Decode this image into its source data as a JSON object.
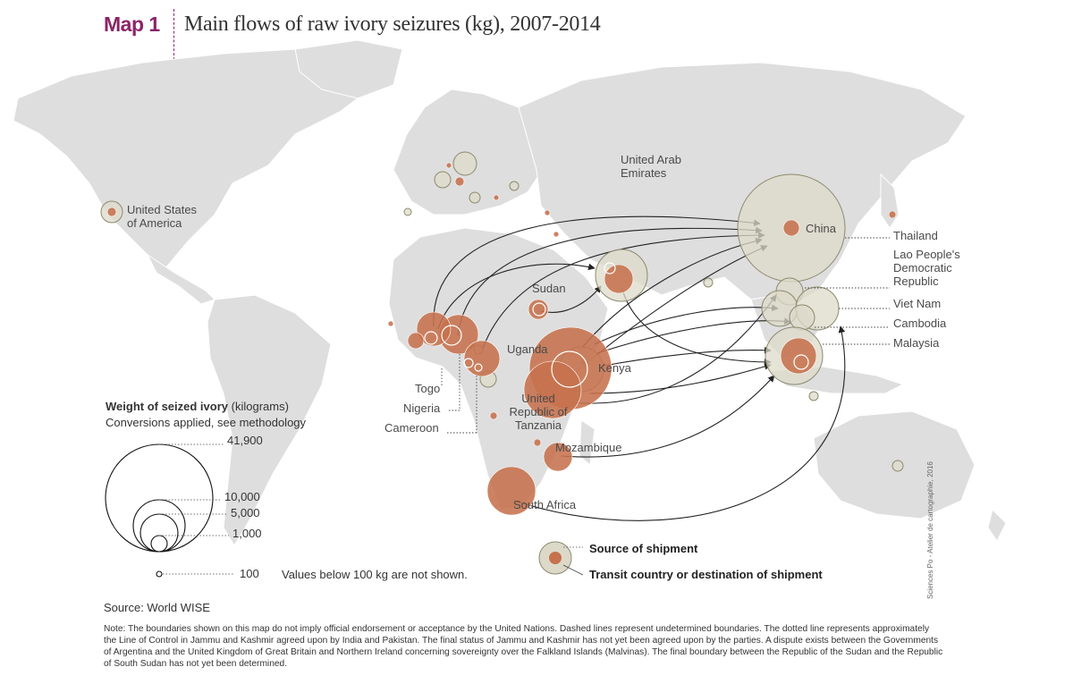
{
  "header": {
    "tag": "Map 1",
    "title": "Main flows of raw ivory seizures (kg), 2007-2014"
  },
  "colors": {
    "land": "#dedede",
    "source_fill": "#c6724d",
    "transit_fill": "#ddd9c9",
    "transit_stroke": "#8c8a6e",
    "arrow": "#222222",
    "title_accent": "#8b2468"
  },
  "countries": {
    "usa": "United States of America",
    "uae": "United Arab Emirates",
    "china": "China",
    "thailand": "Thailand",
    "laos": "Lao People's Democratic Republic",
    "vietnam": "Viet Nam",
    "cambodia": "Cambodia",
    "malaysia": "Malaysia",
    "sudan": "Sudan",
    "uganda": "Uganda",
    "kenya": "Kenya",
    "tanzania": "United Republic of Tanzania",
    "togo": "Togo",
    "nigeria": "Nigeria",
    "cameroon": "Cameroon",
    "mozambique": "Mozambique",
    "south_africa": "South Africa"
  },
  "legend": {
    "title": "Weight of seized ivory",
    "title_unit": "(kilograms)",
    "subtitle": "Conversions applied, see methodology",
    "values": [
      "41,900",
      "10,000",
      "5,000",
      "1,000",
      "100"
    ],
    "note": "Values below 100 kg are not shown.",
    "key_source": "Source of shipment",
    "key_transit": "Transit country or destination of shipment"
  },
  "footer": {
    "source": "Source: World WISE",
    "note": "Note: The boundaries shown on this map do not imply official endorsement or acceptance by the United Nations. Dashed lines represent undetermined boundaries. The dotted line represents approximately the Line of Control in Jammu and Kashmir agreed upon by India and Pakistan. The final status of Jammu and Kashmir has not yet been agreed upon by the parties. A dispute exists between the Governments of Argentina and the United Kingdom of Great Britain and Northern Ireland concerning sovereignty over the Falkland Islands (Malvinas). The final boundary between the Republic of the Sudan and the Republic of South Sudan has not yet been determined.",
    "credit": "Sciences Po - Atelier de cartographie, 2016"
  }
}
